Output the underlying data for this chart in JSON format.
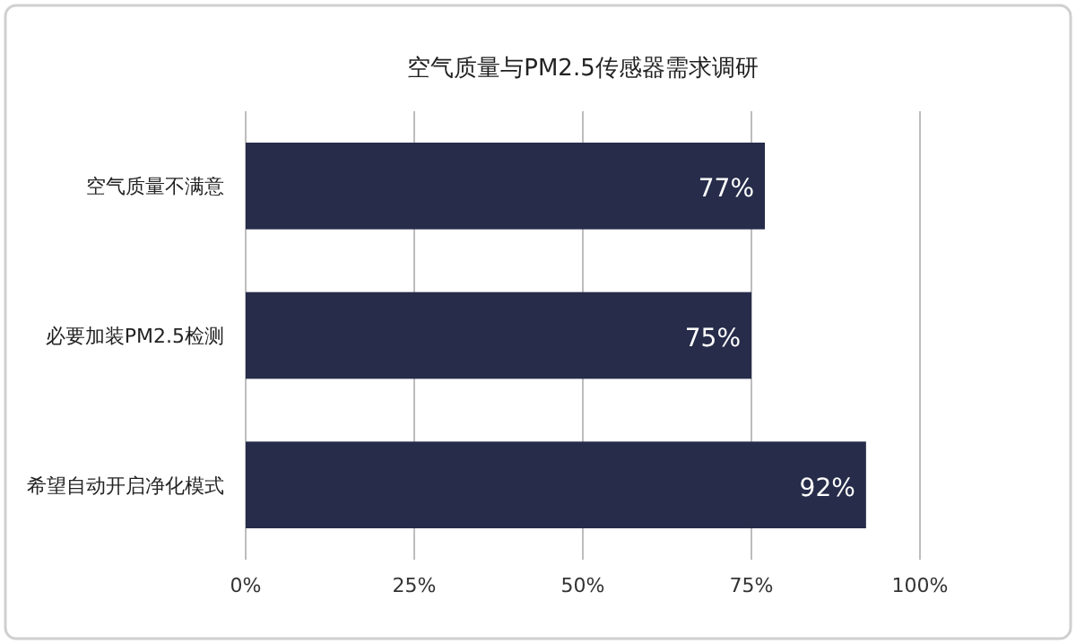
{
  "chart_data": {
    "type": "bar",
    "orientation": "horizontal",
    "title": "空气质量与PM2.5传感器需求调研",
    "categories": [
      "空气质量不满意",
      "必要加装PM2.5检测",
      "希望自动开启净化模式"
    ],
    "values": [
      77,
      75,
      92
    ],
    "value_labels": [
      "77%",
      "75%",
      "92%"
    ],
    "color": "#262c49",
    "xlim": [
      0,
      100
    ],
    "xticks": [
      {
        "value": 0,
        "label": "0%"
      },
      {
        "value": 25,
        "label": "25%"
      },
      {
        "value": 50,
        "label": "50%"
      },
      {
        "value": 75,
        "label": "75%"
      },
      {
        "value": 100,
        "label": "100%"
      }
    ],
    "grid": "x"
  }
}
